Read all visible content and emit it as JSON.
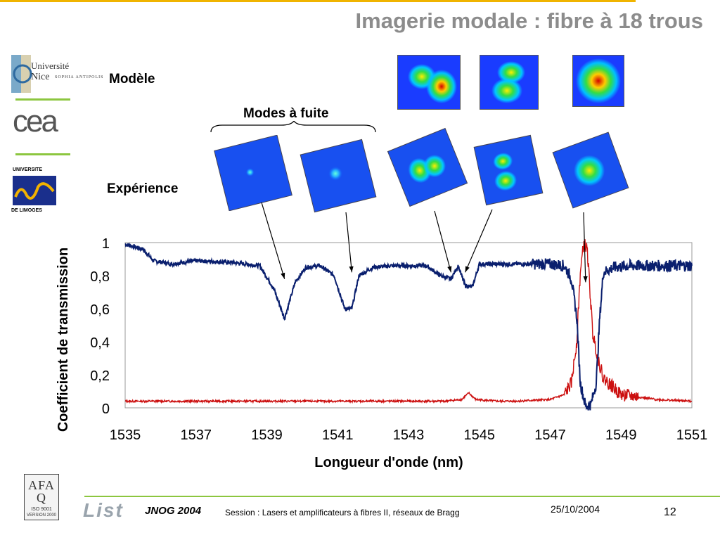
{
  "slide": {
    "title": "Imagerie modale : fibre à 18 trous",
    "label_model": "Modèle",
    "label_leaky": "Modes à fuite",
    "label_experience": "Expérience"
  },
  "logos": {
    "unice_line1": "Université",
    "unice_line2": "Nice",
    "unice_line3": "SOPHIA ANTIPOLIS",
    "cea": "cea",
    "limoges_top": "UNIVERSITE",
    "limoges_bottom": "DE LIMOGES",
    "afaq_letters": "AFAQ",
    "afaq_iso": "ISO 9001",
    "afaq_version": "VERSION 2000",
    "list": "List"
  },
  "footer": {
    "conference": "JNOG 2004",
    "session": "Session : Lasers et amplificateurs à fibres II, réseaux de Bragg",
    "date": "25/10/2004",
    "page": "12"
  },
  "colors": {
    "accent_line": "#f0b400",
    "separator": "#8cc63f",
    "series_blue": "#0a1f6e",
    "series_red": "#cc1010"
  },
  "chart_data": {
    "type": "line",
    "title": "",
    "xlabel": "Longueur d'onde (nm)",
    "ylabel": "Coefficient de transmission",
    "xlim": [
      1535,
      1551
    ],
    "ylim": [
      0,
      1
    ],
    "x_ticks": [
      "1535",
      "1537",
      "1539",
      "1541",
      "1543",
      "1545",
      "1547",
      "1549",
      "1551"
    ],
    "y_ticks": [
      "0",
      "0,2",
      "0,4",
      "0,6",
      "0,8",
      "1"
    ],
    "grid": "horizontal line at 1",
    "series": [
      {
        "color": "#0a1f6e",
        "x": [
          1535,
          1535.5,
          1535.8,
          1536.3,
          1537,
          1538,
          1538.8,
          1539.2,
          1539.5,
          1539.8,
          1540.1,
          1540.5,
          1540.9,
          1541.2,
          1541.4,
          1541.6,
          1542,
          1542.5,
          1543,
          1543.5,
          1543.9,
          1544.2,
          1544.4,
          1544.6,
          1544.8,
          1545,
          1545.5,
          1546,
          1546.5,
          1547,
          1547.4,
          1547.6,
          1547.75,
          1547.85,
          1548.0,
          1548.15,
          1548.3,
          1548.4,
          1548.5,
          1548.8,
          1549.2,
          1550,
          1551
        ],
        "y": [
          0.99,
          0.96,
          0.89,
          0.87,
          0.89,
          0.88,
          0.86,
          0.72,
          0.54,
          0.76,
          0.85,
          0.86,
          0.8,
          0.6,
          0.6,
          0.8,
          0.85,
          0.86,
          0.86,
          0.86,
          0.8,
          0.78,
          0.86,
          0.74,
          0.73,
          0.87,
          0.87,
          0.87,
          0.87,
          0.87,
          0.86,
          0.78,
          0.55,
          0.15,
          0.01,
          0.02,
          0.15,
          0.55,
          0.82,
          0.85,
          0.86,
          0.86,
          0.86
        ]
      },
      {
        "color": "#cc1010",
        "x": [
          1535,
          1536,
          1538,
          1540,
          1542,
          1544,
          1544.5,
          1544.7,
          1544.9,
          1545.5,
          1546,
          1547,
          1547.4,
          1547.6,
          1547.75,
          1547.85,
          1547.95,
          1548.05,
          1548.2,
          1548.35,
          1548.5,
          1549,
          1550,
          1551
        ],
        "y": [
          0.04,
          0.04,
          0.04,
          0.04,
          0.04,
          0.04,
          0.05,
          0.09,
          0.05,
          0.04,
          0.04,
          0.05,
          0.08,
          0.15,
          0.4,
          0.82,
          1.0,
          0.95,
          0.45,
          0.3,
          0.18,
          0.08,
          0.05,
          0.04
        ]
      }
    ]
  }
}
